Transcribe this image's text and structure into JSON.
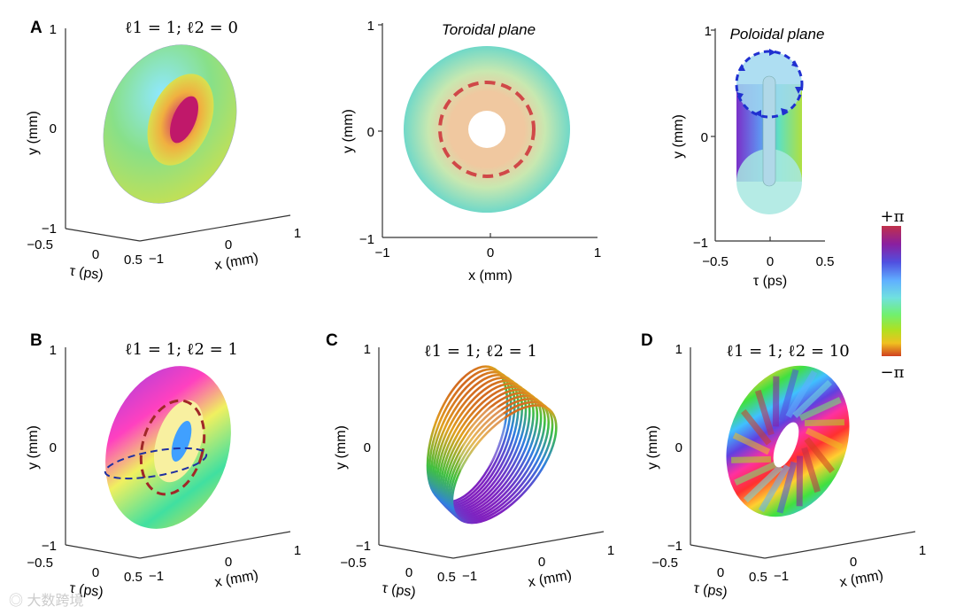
{
  "figure": {
    "panel_labels": [
      "A",
      "B",
      "C",
      "D"
    ],
    "watermark": "大数跨境",
    "colorbar": {
      "top_label": "+π",
      "bottom_label": "−π",
      "colors": [
        "#c0304a",
        "#8a1fa0",
        "#5050e0",
        "#60b0ff",
        "#70e0e0",
        "#70f070",
        "#b0e020",
        "#f0c020",
        "#d04020"
      ]
    }
  },
  "panels": {
    "a1": {
      "title": "ℓ1 = 1; ℓ2 = 0",
      "y_label": "y (mm)",
      "y_ticks": [
        "1",
        "0",
        "−1"
      ],
      "tau_label": "τ (ps)",
      "tau_ticks": [
        "−0.5",
        "0",
        "0.5"
      ],
      "x_label": "x (mm)",
      "x_ticks": [
        "−1",
        "0",
        "1"
      ]
    },
    "a2": {
      "title": "Toroidal plane",
      "y_label": "y (mm)",
      "y_ticks": [
        "1",
        "0",
        "−1"
      ],
      "x_label": "x (mm)",
      "x_ticks": [
        "−1",
        "0",
        "1"
      ]
    },
    "a3": {
      "title": "Poloidal plane",
      "y_label": "y (mm)",
      "y_ticks": [
        "1",
        "0",
        "−1"
      ],
      "x_label": "τ (ps)",
      "x_ticks": [
        "−0.5",
        "0",
        "0.5"
      ]
    },
    "b": {
      "title": "ℓ1 = 1; ℓ2 = 1",
      "y_label": "y (mm)",
      "y_ticks": [
        "1",
        "0",
        "−1"
      ],
      "tau_label": "τ (ps)",
      "tau_ticks": [
        "−0.5",
        "0",
        "0.5"
      ],
      "x_label": "x (mm)",
      "x_ticks": [
        "−1",
        "0",
        "1"
      ]
    },
    "c": {
      "title": "ℓ1 = 1; ℓ2 = 1",
      "y_label": "y (mm)",
      "y_ticks": [
        "1",
        "0",
        "−1"
      ],
      "tau_label": "τ (ps)",
      "tau_ticks": [
        "−0.5",
        "0",
        "0.5"
      ],
      "x_label": "x (mm)",
      "x_ticks": [
        "−1",
        "0",
        "1"
      ]
    },
    "d": {
      "title": "ℓ1 = 1; ℓ2 = 10",
      "y_label": "y (mm)",
      "y_ticks": [
        "1",
        "0",
        "−1"
      ],
      "tau_label": "τ (ps)",
      "tau_ticks": [
        "−0.5",
        "0",
        "0.5"
      ],
      "x_label": "x (mm)",
      "x_ticks": [
        "−1",
        "0",
        "1"
      ]
    }
  }
}
